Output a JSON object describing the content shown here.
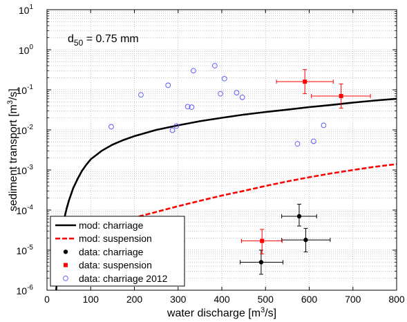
{
  "chart_data": {
    "type": "scatter",
    "xlabel": {
      "main": "water discharge [m",
      "sup": "3",
      "tail": "/s]"
    },
    "ylabel": {
      "main": "sediment transport [m",
      "sup": "3",
      "tail": "/s]"
    },
    "annotation": {
      "main": "d",
      "sub": "50",
      "tail": " = 0.75 mm"
    },
    "xlim": [
      0,
      800
    ],
    "ylim": [
      1e-06,
      10
    ],
    "yscale": "log",
    "grid": true,
    "legend_position": "bottom-left",
    "x_ticks": [
      {
        "value": 0,
        "label": "0"
      },
      {
        "value": 100,
        "label": "100"
      },
      {
        "value": 200,
        "label": "200"
      },
      {
        "value": 300,
        "label": "300"
      },
      {
        "value": 400,
        "label": "400"
      },
      {
        "value": 500,
        "label": "500"
      },
      {
        "value": 600,
        "label": "600"
      },
      {
        "value": 700,
        "label": "700"
      },
      {
        "value": 800,
        "label": "800"
      }
    ],
    "y_ticks": [
      {
        "value": 1e-06,
        "base": "10",
        "exp": "-6"
      },
      {
        "value": 1e-05,
        "base": "10",
        "exp": "-5"
      },
      {
        "value": 0.0001,
        "base": "10",
        "exp": "-4"
      },
      {
        "value": 0.001,
        "base": "10",
        "exp": "-3"
      },
      {
        "value": 0.01,
        "base": "10",
        "exp": "-2"
      },
      {
        "value": 0.1,
        "base": "10",
        "exp": "-1"
      },
      {
        "value": 1,
        "base": "10",
        "exp": "0"
      },
      {
        "value": 10,
        "base": "10",
        "exp": "1"
      }
    ],
    "series": [
      {
        "name": "mod: charriage",
        "kind": "line",
        "style": "solid",
        "color": "#000000",
        "points": [
          [
            21,
            1e-06
          ],
          [
            25,
            3.6e-06
          ],
          [
            30,
            1.1e-05
          ],
          [
            35,
            3e-05
          ],
          [
            40,
            6.5e-05
          ],
          [
            45,
            0.00011
          ],
          [
            50,
            0.00017
          ],
          [
            60,
            0.00035
          ],
          [
            70,
            0.0006
          ],
          [
            80,
            0.00095
          ],
          [
            90,
            0.00135
          ],
          [
            100,
            0.00185
          ],
          [
            125,
            0.003
          ],
          [
            150,
            0.0043
          ],
          [
            175,
            0.0056
          ],
          [
            200,
            0.007
          ],
          [
            250,
            0.01
          ],
          [
            300,
            0.013
          ],
          [
            350,
            0.0165
          ],
          [
            400,
            0.02
          ],
          [
            450,
            0.024
          ],
          [
            500,
            0.028
          ],
          [
            550,
            0.032
          ],
          [
            600,
            0.037
          ],
          [
            650,
            0.042
          ],
          [
            700,
            0.048
          ],
          [
            750,
            0.054
          ],
          [
            800,
            0.06
          ]
        ]
      },
      {
        "name": "mod: suspension",
        "kind": "line",
        "style": "dashed",
        "color": "#ff0000",
        "points": [
          [
            90,
            2.6e-05
          ],
          [
            120,
            3.5e-05
          ],
          [
            150,
            4.5e-05
          ],
          [
            200,
            6.5e-05
          ],
          [
            250,
            9e-05
          ],
          [
            300,
            0.000125
          ],
          [
            350,
            0.00017
          ],
          [
            400,
            0.00023
          ],
          [
            450,
            0.0003
          ],
          [
            500,
            0.0004
          ],
          [
            550,
            0.00052
          ],
          [
            600,
            0.00066
          ],
          [
            650,
            0.00082
          ],
          [
            700,
            0.001
          ],
          [
            750,
            0.0012
          ],
          [
            800,
            0.0014
          ]
        ]
      },
      {
        "name": "data: charriage",
        "kind": "points",
        "marker": "filled-circle",
        "color": "#000000",
        "points": [
          {
            "x": 577,
            "y": 7e-05,
            "xerr": [
              537,
              617
            ],
            "yerr": [
              4e-05,
              0.00014
            ]
          },
          {
            "x": 592,
            "y": 1.8e-05,
            "xerr": [
              537,
              648
            ],
            "yerr": [
              9e-06,
              3.5e-05
            ]
          },
          {
            "x": 490,
            "y": 5e-06,
            "xerr": [
              442,
              540
            ],
            "yerr": [
              2.5e-06,
              1e-05
            ]
          }
        ]
      },
      {
        "name": "data: suspension",
        "kind": "points",
        "marker": "filled-square",
        "color": "#ff0000",
        "points": [
          {
            "x": 590,
            "y": 0.16,
            "xerr": [
              525,
              655
            ],
            "yerr": [
              0.08,
              0.32
            ]
          },
          {
            "x": 673,
            "y": 0.07,
            "xerr": [
              605,
              740
            ],
            "yerr": [
              0.035,
              0.14
            ]
          },
          {
            "x": 492,
            "y": 1.7e-05,
            "xerr": [
              445,
              538
            ],
            "yerr": [
              8e-06,
              3.3e-05
            ]
          }
        ]
      },
      {
        "name": "data: charriage 2012",
        "kind": "points",
        "marker": "open-circle",
        "color": "#4f4fff",
        "points": [
          {
            "x": 147,
            "y": 0.012
          },
          {
            "x": 215,
            "y": 0.075
          },
          {
            "x": 277,
            "y": 0.13
          },
          {
            "x": 287,
            "y": 0.0098
          },
          {
            "x": 296,
            "y": 0.0125
          },
          {
            "x": 322,
            "y": 0.038
          },
          {
            "x": 331,
            "y": 0.037
          },
          {
            "x": 335,
            "y": 0.3
          },
          {
            "x": 384,
            "y": 0.4
          },
          {
            "x": 397,
            "y": 0.08
          },
          {
            "x": 406,
            "y": 0.19
          },
          {
            "x": 434,
            "y": 0.085
          },
          {
            "x": 447,
            "y": 0.065
          },
          {
            "x": 573,
            "y": 0.0045
          },
          {
            "x": 610,
            "y": 0.0052
          },
          {
            "x": 633,
            "y": 0.013
          }
        ]
      }
    ]
  }
}
